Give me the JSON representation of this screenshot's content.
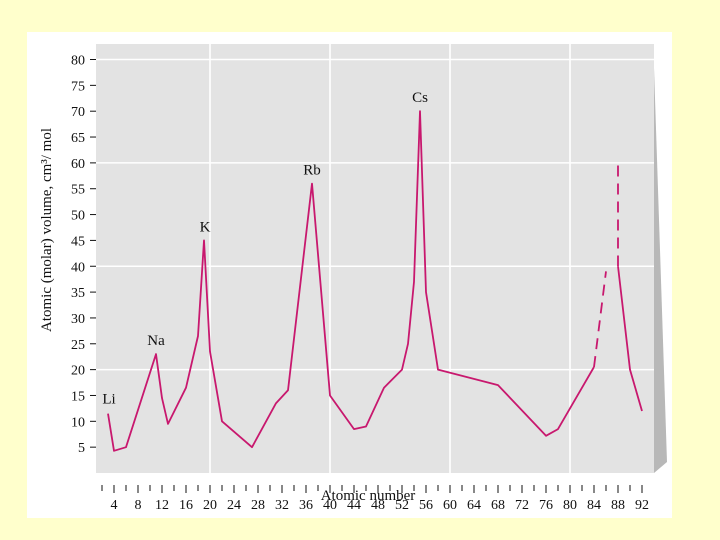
{
  "colors": {
    "slide_background": "#ffffcc",
    "plot_background": "#e3e3e3",
    "plot_shadow": "#b8b8b8",
    "grid": "#ffffff",
    "line": "#c8186e",
    "text": "#111111"
  },
  "chart_data": {
    "type": "line",
    "xlabel": "Atomic number",
    "ylabel": "Atomic (molar) volume, cm³/ mol",
    "xlim": [
      1,
      94
    ],
    "ylim": [
      0,
      83
    ],
    "x_ticks": [
      4,
      8,
      12,
      16,
      20,
      24,
      28,
      32,
      36,
      40,
      44,
      48,
      52,
      56,
      60,
      64,
      68,
      72,
      76,
      80,
      84,
      88,
      92
    ],
    "x_tick_labels": [
      "4",
      "8",
      "12",
      "16",
      "20",
      "24",
      "28",
      "32",
      "36",
      "40",
      "44",
      "48",
      "52",
      "56",
      "60",
      "64",
      "68",
      "72",
      "76",
      "80",
      "84",
      "88",
      "92"
    ],
    "y_ticks": [
      5,
      10,
      15,
      20,
      25,
      30,
      35,
      40,
      45,
      50,
      55,
      60,
      65,
      70,
      75,
      80
    ],
    "y_tick_labels": [
      "5",
      "10",
      "15",
      "20",
      "25",
      "30",
      "35",
      "40",
      "45",
      "50",
      "55",
      "60",
      "65",
      "70",
      "75",
      "80"
    ],
    "grid": true,
    "series": [
      {
        "style": "solid",
        "points": [
          [
            3,
            11.5
          ],
          [
            4,
            4.3
          ],
          [
            6,
            5.0
          ],
          [
            11,
            23.0
          ],
          [
            12,
            14.5
          ],
          [
            13,
            9.5
          ],
          [
            16,
            16.5
          ],
          [
            18,
            26.5
          ],
          [
            19,
            45.0
          ],
          [
            20,
            23.5
          ],
          [
            22,
            10.0
          ],
          [
            27,
            5.0
          ],
          [
            31,
            13.5
          ],
          [
            33,
            16.0
          ],
          [
            37,
            56.0
          ],
          [
            40,
            15.0
          ],
          [
            44,
            8.5
          ],
          [
            46,
            9.0
          ],
          [
            49,
            16.5
          ],
          [
            52,
            20.0
          ],
          [
            53,
            25.0
          ],
          [
            54,
            37.0
          ],
          [
            55,
            70.0
          ],
          [
            56,
            35.0
          ],
          [
            58,
            20.0
          ],
          [
            68,
            17.0
          ],
          [
            76,
            7.2
          ],
          [
            78,
            8.5
          ],
          [
            84,
            20.5
          ]
        ]
      },
      {
        "style": "solid",
        "points": [
          [
            88,
            40.0
          ],
          [
            90,
            20.0
          ],
          [
            92,
            12.0
          ]
        ]
      },
      {
        "style": "dashed",
        "points": [
          [
            84,
            20.5
          ],
          [
            86,
            39.0
          ]
        ]
      },
      {
        "style": "dashed",
        "points": [
          [
            88,
            59.5
          ],
          [
            88,
            40.0
          ]
        ]
      }
    ],
    "annotations": [
      {
        "text": "Li",
        "x": 3,
        "y": 11.5
      },
      {
        "text": "Na",
        "x": 11,
        "y": 23.0
      },
      {
        "text": "K",
        "x": 19,
        "y": 45.0
      },
      {
        "text": "Rb",
        "x": 37,
        "y": 56.0
      },
      {
        "text": "Cs",
        "x": 55,
        "y": 70.0
      }
    ]
  }
}
